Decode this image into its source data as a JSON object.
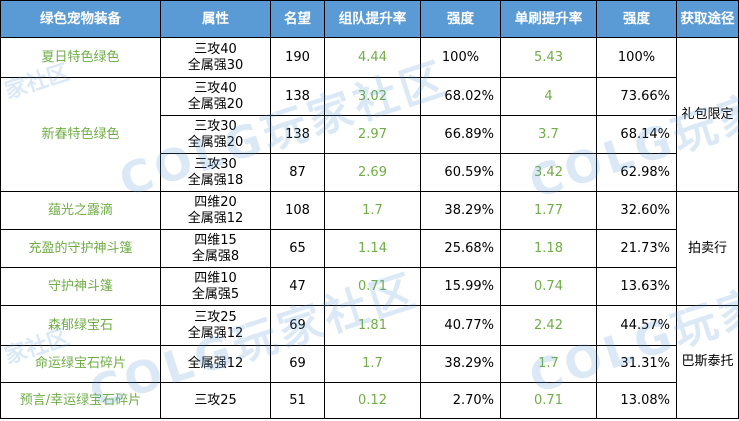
{
  "headers": [
    "绿色宠物装备",
    "属性",
    "名望",
    "组队提升率",
    "强度",
    "单刷提升率",
    "强度",
    "获取途径"
  ],
  "rows": [
    {
      "name": "夏日特色绿色",
      "attr": [
        "三攻40",
        "全属强30"
      ],
      "fame": "190",
      "team": "4.44",
      "team_str": "100%",
      "solo": "5.43",
      "solo_str": "100%"
    },
    {
      "name": "新春特色绿色",
      "attr": [
        "三攻40",
        "全属强20"
      ],
      "fame": "138",
      "team": "3.02",
      "team_str": "68.02%",
      "solo": "4",
      "solo_str": "73.66%"
    },
    {
      "name": "",
      "attr": [
        "三攻30",
        "全属强20"
      ],
      "fame": "138",
      "team": "2.97",
      "team_str": "66.89%",
      "solo": "3.7",
      "solo_str": "68.14%"
    },
    {
      "name": "",
      "attr": [
        "三攻30",
        "全属强18"
      ],
      "fame": "87",
      "team": "2.69",
      "team_str": "60.59%",
      "solo": "3.42",
      "solo_str": "62.98%"
    },
    {
      "name": "蕴光之露滴",
      "attr": [
        "四维20",
        "全属强12"
      ],
      "fame": "108",
      "team": "1.7",
      "team_str": "38.29%",
      "solo": "1.77",
      "solo_str": "32.60%"
    },
    {
      "name": "充盈的守护神斗篷",
      "attr": [
        "四维15",
        "全属强8"
      ],
      "fame": "65",
      "team": "1.14",
      "team_str": "25.68%",
      "solo": "1.18",
      "solo_str": "21.73%"
    },
    {
      "name": "守护神斗篷",
      "attr": [
        "四维10",
        "全属强5"
      ],
      "fame": "47",
      "team": "0.71",
      "team_str": "15.99%",
      "solo": "0.74",
      "solo_str": "13.63%"
    },
    {
      "name": "森郁绿宝石",
      "attr": [
        "三攻25",
        "全属强12"
      ],
      "fame": "69",
      "team": "1.81",
      "team_str": "40.77%",
      "solo": "2.42",
      "solo_str": "44.57%"
    },
    {
      "name": "命运绿宝石碎片",
      "attr": [
        "全属强12"
      ],
      "fame": "69",
      "team": "1.7",
      "team_str": "38.29%",
      "solo": "1.7",
      "solo_str": "31.31%"
    },
    {
      "name": "预言/幸运绿宝石碎片",
      "attr": [
        "三攻25"
      ],
      "fame": "51",
      "team": "0.12",
      "team_str": "2.70%",
      "solo": "0.71",
      "solo_str": "13.08%"
    }
  ],
  "sources": [
    "礼包限定",
    "拍卖行",
    "巴斯泰托"
  ],
  "watermark": {
    "big": "COLG玩家社区",
    "small": "家社区"
  },
  "colors": {
    "header_bg": "#5b9bd5",
    "header_text": "#ffffff",
    "green_text": "#70ad47",
    "watermark": "#5b9bd5"
  }
}
